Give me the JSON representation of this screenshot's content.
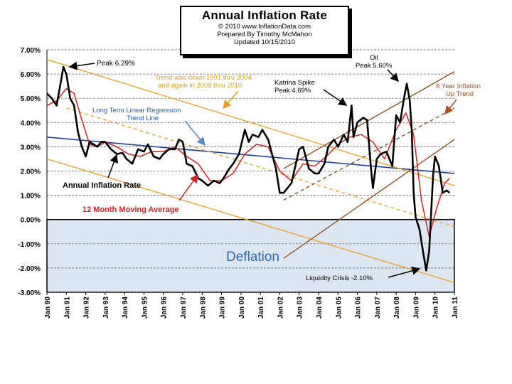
{
  "chart_data": {
    "type": "line",
    "title": "Annual Inflation Rate",
    "subtitle_lines": [
      "© 2010 www.InflationData.com",
      "Prepared By Timothy McMahon",
      "Updated 10/15/2010"
    ],
    "ylim": [
      -3,
      7
    ],
    "y_ticks": [
      "7.00%",
      "6.00%",
      "5.00%",
      "4.00%",
      "3.00%",
      "2.00%",
      "1.00%",
      "0.00%",
      "-1.00%",
      "-2.00%",
      "-3.00%"
    ],
    "x_ticks": [
      "Jan 90",
      "Jan 91",
      "Jan 92",
      "Jan 93",
      "Jan 94",
      "Jan 95",
      "Jan 96",
      "Jan 97",
      "Jan 98",
      "Jan 99",
      "Jan 00",
      "Jan 01",
      "Jan 02",
      "Jan 03",
      "Jan 04",
      "Jan 05",
      "Jan 06",
      "Jan 07",
      "Jan 08",
      "Jan 09",
      "Jan 10",
      "Jan 11"
    ],
    "xlim": [
      1990.0,
      2011.0
    ],
    "grid": true,
    "deflation_label": "Deflation",
    "series": [
      {
        "name": "Annual Inflation Rate",
        "color": "#000000",
        "x": [
          1990.0,
          1990.25,
          1990.5,
          1990.7,
          1990.85,
          1991.0,
          1991.2,
          1991.4,
          1991.6,
          1991.8,
          1992.0,
          1992.2,
          1992.4,
          1992.6,
          1992.8,
          1993.0,
          1993.3,
          1993.6,
          1993.9,
          1994.1,
          1994.4,
          1994.7,
          1995.0,
          1995.2,
          1995.5,
          1995.8,
          1996.0,
          1996.3,
          1996.6,
          1996.8,
          1997.0,
          1997.2,
          1997.5,
          1997.8,
          1998.0,
          1998.3,
          1998.6,
          1998.9,
          1999.1,
          1999.4,
          1999.6,
          1999.9,
          2000.2,
          2000.4,
          2000.6,
          2000.9,
          2001.1,
          2001.4,
          2001.6,
          2001.8,
          2002.0,
          2002.2,
          2002.4,
          2002.6,
          2002.8,
          2003.0,
          2003.2,
          2003.5,
          2003.8,
          2004.0,
          2004.3,
          2004.5,
          2004.8,
          2005.0,
          2005.3,
          2005.5,
          2005.7,
          2005.8,
          2006.0,
          2006.3,
          2006.5,
          2006.7,
          2006.8,
          2007.0,
          2007.2,
          2007.5,
          2007.8,
          2008.0,
          2008.2,
          2008.4,
          2008.55,
          2008.7,
          2008.8,
          2008.9,
          2009.0,
          2009.2,
          2009.4,
          2009.55,
          2009.7,
          2009.9,
          2010.0,
          2010.2,
          2010.4,
          2010.6,
          2010.75
        ],
        "values": [
          5.2,
          5.0,
          4.7,
          5.6,
          6.29,
          6.0,
          5.0,
          4.7,
          3.6,
          3.0,
          2.6,
          3.2,
          3.1,
          3.0,
          3.2,
          3.2,
          2.9,
          2.7,
          2.75,
          2.5,
          2.3,
          2.9,
          2.8,
          3.1,
          2.6,
          2.5,
          2.7,
          2.9,
          2.9,
          3.3,
          3.2,
          2.3,
          2.2,
          1.7,
          1.6,
          1.4,
          1.6,
          1.5,
          1.7,
          2.1,
          2.3,
          2.7,
          3.7,
          3.2,
          3.5,
          3.4,
          3.7,
          3.3,
          2.7,
          2.1,
          1.1,
          1.1,
          1.3,
          1.5,
          2.2,
          2.9,
          3.0,
          2.1,
          1.9,
          1.9,
          2.3,
          3.0,
          3.3,
          3.0,
          3.5,
          3.2,
          4.7,
          3.4,
          4.0,
          4.2,
          4.1,
          2.1,
          1.3,
          2.5,
          2.7,
          2.8,
          2.2,
          4.3,
          4.0,
          5.0,
          5.6,
          4.9,
          3.7,
          1.1,
          0.1,
          -0.4,
          -1.4,
          -2.1,
          -1.3,
          1.8,
          2.6,
          2.2,
          1.1,
          1.2,
          1.1
        ]
      },
      {
        "name": "12 Month Moving Average",
        "color": "#dd1f1f",
        "x": [
          1990.0,
          1990.5,
          1991.0,
          1991.4,
          1991.8,
          1992.2,
          1992.6,
          1993.0,
          1993.6,
          1994.2,
          1994.8,
          1995.4,
          1996.0,
          1996.6,
          1997.2,
          1997.8,
          1998.4,
          1999.0,
          1999.6,
          2000.2,
          2000.8,
          2001.4,
          2002.0,
          2002.6,
          2003.2,
          2003.8,
          2004.4,
          2005.0,
          2005.6,
          2006.2,
          2006.8,
          2007.4,
          2008.0,
          2008.5,
          2008.9,
          2009.3,
          2009.7,
          2010.1,
          2010.5,
          2010.75
        ],
        "values": [
          4.7,
          4.9,
          5.4,
          5.2,
          4.1,
          3.1,
          3.0,
          3.2,
          3.0,
          2.7,
          2.6,
          2.8,
          2.8,
          3.0,
          2.6,
          2.3,
          1.6,
          1.6,
          1.9,
          2.7,
          3.1,
          3.0,
          2.0,
          1.6,
          2.3,
          2.2,
          2.6,
          3.1,
          3.4,
          3.5,
          3.2,
          2.5,
          3.7,
          4.4,
          3.5,
          0.8,
          -0.7,
          0.5,
          1.5,
          1.7
        ]
      }
    ],
    "trend_lines": [
      {
        "name": "Long Term Linear Regression Trend Line",
        "color": "#1f3fa0",
        "style": "solid",
        "x": [
          1990.0,
          2011.0
        ],
        "values": [
          3.4,
          1.9
        ]
      },
      {
        "name": "Trend was down 1991 thru 2004 upper",
        "color": "#f0a020",
        "style": "solid",
        "x": [
          1990.0,
          2011.0
        ],
        "values": [
          6.6,
          1.4
        ]
      },
      {
        "name": "Trend was down 1991 thru 2004 lower",
        "color": "#f0a020",
        "style": "solid",
        "x": [
          1990.0,
          2011.0
        ],
        "values": [
          2.5,
          -2.6
        ]
      },
      {
        "name": "Trend down middle",
        "color": "#f0a020",
        "style": "dashed",
        "x": [
          1991.0,
          2011.0
        ],
        "values": [
          4.6,
          -0.3
        ]
      },
      {
        "name": "6 Year Inflation Up Trend upper",
        "color": "#8b4513",
        "style": "solid",
        "x": [
          2002.2,
          2011.0
        ],
        "values": [
          2.1,
          6.1
        ]
      },
      {
        "name": "6 Year Inflation Up Trend lower",
        "color": "#8b4513",
        "style": "solid",
        "x": [
          2002.2,
          2011.0
        ],
        "values": [
          -1.6,
          3.3
        ]
      },
      {
        "name": "6 Year Inflation Up Trend middle",
        "color": "#8b4513",
        "style": "dashed",
        "x": [
          2002.2,
          2011.0
        ],
        "values": [
          0.8,
          4.6
        ]
      }
    ],
    "annotations": [
      {
        "id": "peak-1991",
        "text": "Peak 6.29%",
        "color": "#000000"
      },
      {
        "id": "trend-down",
        "text_lines": [
          "Trend was down 1991 thru 2004",
          "and again in 2008 thru 2010"
        ],
        "color": "#e8a020"
      },
      {
        "id": "regression",
        "text_lines": [
          "Long Term Linear Regression",
          "Trend Line"
        ],
        "color": "#1f5fbf"
      },
      {
        "id": "katrina",
        "text_lines": [
          "Katrina Spike",
          "Peak 4.69%"
        ],
        "color": "#000000"
      },
      {
        "id": "oil",
        "text_lines": [
          "Oil",
          "Peak 5.60%"
        ],
        "color": "#000000"
      },
      {
        "id": "six-year",
        "text_lines": [
          "6 Year Inflation",
          "Up Trend"
        ],
        "color": "#b05020"
      },
      {
        "id": "annual-label",
        "text": "Annual Inflation Rate",
        "color": "#000000"
      },
      {
        "id": "ma-label",
        "text": "12 Month Moving Average",
        "color": "#dd1f1f"
      },
      {
        "id": "liquidity",
        "text": "Liquidity Crisis -2.10%",
        "color": "#000000"
      }
    ]
  }
}
